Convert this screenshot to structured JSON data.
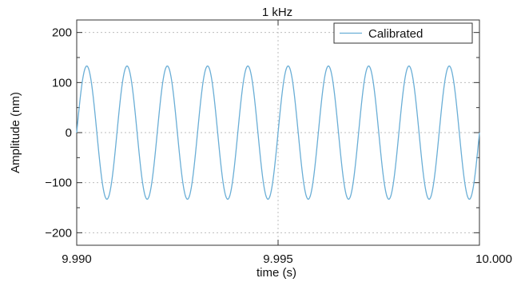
{
  "chart_data": {
    "type": "line",
    "title": "1 kHz",
    "xlabel": "time (s)",
    "ylabel": "Amplitude (nm)",
    "xlim": [
      9.99,
      10.0
    ],
    "ylim": [
      -225,
      225
    ],
    "x_ticks": [
      9.99,
      9.995,
      10.0
    ],
    "x_tick_labels": [
      "9.990",
      "9.995",
      "10.000"
    ],
    "y_ticks": [
      -200,
      -100,
      0,
      100,
      200
    ],
    "y_tick_labels": [
      "−200",
      "−100",
      "0",
      "100",
      "200"
    ],
    "grid": true,
    "legend_position": "top-right",
    "series": [
      {
        "name": "Calibrated",
        "color": "#6aaed6",
        "function": "sine",
        "amplitude": 133,
        "frequency_hz": 1000,
        "phase_deg": 0,
        "x_start": 9.99,
        "x_end": 10.0
      }
    ]
  }
}
